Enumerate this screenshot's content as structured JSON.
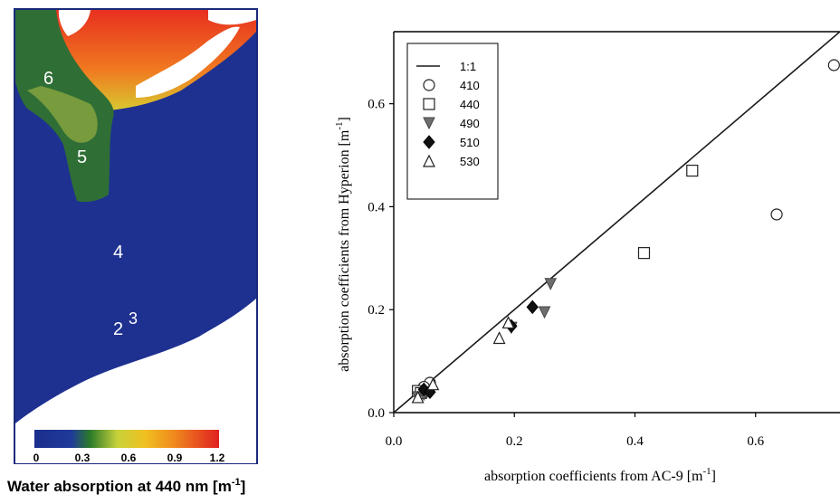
{
  "map_panel": {
    "title": "Water absorption at 440 nm [m",
    "title_sup": "-1",
    "title_end": "]",
    "site_labels": [
      "6",
      "5",
      "4",
      "2",
      "3"
    ],
    "colorbar_ticks": [
      "0",
      "0.3",
      "0.6",
      "0.9",
      "1.2"
    ],
    "colorbar_colors": [
      "#1b2e8c",
      "#2a7a2a",
      "#c8d23a",
      "#f08c1e",
      "#e02020"
    ]
  },
  "chart_data": {
    "type": "scatter",
    "xlabel": "absorption coefficients from AC-9",
    "ylabel": "absorption coefficients from Hyperion",
    "unit_label": "[m",
    "unit_sup": "-1",
    "unit_end": "]",
    "xlim": [
      0.0,
      0.74
    ],
    "ylim": [
      0.0,
      0.74
    ],
    "xticks": [
      "0.0",
      "0.2",
      "0.4",
      "0.6"
    ],
    "yticks": [
      "0.0",
      "0.2",
      "0.4",
      "0.6"
    ],
    "xtick_values": [
      0.0,
      0.2,
      0.4,
      0.6
    ],
    "ytick_values": [
      0.0,
      0.2,
      0.4,
      0.6
    ],
    "legend_position": "top-left",
    "legend": [
      "1:1",
      "410",
      "440",
      "490",
      "510",
      "530"
    ],
    "reference_line": {
      "name": "1:1",
      "points": [
        [
          0.0,
          0.0
        ],
        [
          0.74,
          0.74
        ]
      ]
    },
    "series": [
      {
        "name": "410",
        "marker": "circle-open",
        "points": [
          [
            0.73,
            0.675
          ],
          [
            0.635,
            0.385
          ],
          [
            0.06,
            0.058
          ],
          [
            0.05,
            0.05
          ]
        ]
      },
      {
        "name": "440",
        "marker": "square-open",
        "points": [
          [
            0.495,
            0.47
          ],
          [
            0.415,
            0.31
          ],
          [
            0.04,
            0.042
          ],
          [
            0.045,
            0.038
          ]
        ]
      },
      {
        "name": "490",
        "marker": "triangle-down-filled",
        "points": [
          [
            0.26,
            0.25
          ],
          [
            0.25,
            0.195
          ],
          [
            0.195,
            0.165
          ],
          [
            0.055,
            0.04
          ],
          [
            0.04,
            0.03
          ],
          [
            0.05,
            0.035
          ]
        ]
      },
      {
        "name": "510",
        "marker": "diamond-filled",
        "points": [
          [
            0.23,
            0.205
          ],
          [
            0.195,
            0.168
          ],
          [
            0.05,
            0.045
          ],
          [
            0.06,
            0.04
          ]
        ]
      },
      {
        "name": "530",
        "marker": "triangle-up-open",
        "points": [
          [
            0.175,
            0.145
          ],
          [
            0.19,
            0.175
          ],
          [
            0.065,
            0.055
          ],
          [
            0.04,
            0.03
          ]
        ]
      }
    ],
    "colors": {
      "axis": "#000000",
      "line": "#1a1a1a",
      "filled_marker": "#6e6e6e",
      "diamond": "#111111"
    }
  }
}
